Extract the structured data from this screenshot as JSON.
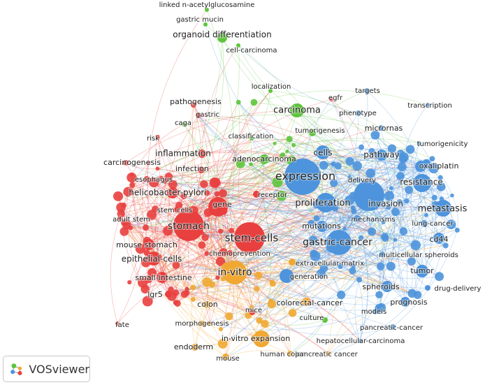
{
  "colors": {
    "red": "#e8403f",
    "green": "#5ec43c",
    "blue": "#4d94dc",
    "orange": "#f0a832"
  },
  "logo": {
    "text": "VOSviewer",
    "icon": "vosviewer-logo-icon"
  },
  "nodes": [
    {
      "label": "linked n-acetylglucosamine",
      "cluster": "green",
      "weight": 1
    },
    {
      "label": "gastric mucin",
      "cluster": "green",
      "weight": 1
    },
    {
      "label": "organoid differentiation",
      "cluster": "green",
      "weight": 3
    },
    {
      "label": "cell-carcinoma",
      "cluster": "green",
      "weight": 1
    },
    {
      "label": "localization",
      "cluster": "green",
      "weight": 1
    },
    {
      "label": "carcinoma",
      "cluster": "green",
      "weight": 4
    },
    {
      "label": "caga",
      "cluster": "green",
      "weight": 1
    },
    {
      "label": "classification",
      "cluster": "green",
      "weight": 1
    },
    {
      "label": "tumorigenesis",
      "cluster": "green",
      "weight": 1
    },
    {
      "label": "adenocarcinoma",
      "cluster": "green",
      "weight": 2
    },
    {
      "label": "culture",
      "cluster": "green",
      "weight": 1
    },
    {
      "label": "egfr",
      "cluster": "red",
      "weight": 1
    },
    {
      "label": "pathogenesis",
      "cluster": "red",
      "weight": 1
    },
    {
      "label": "gastric",
      "cluster": "red",
      "weight": 1
    },
    {
      "label": "risk",
      "cluster": "red",
      "weight": 1
    },
    {
      "label": "inflammation",
      "cluster": "red",
      "weight": 2
    },
    {
      "label": "carcinogenesis",
      "cluster": "red",
      "weight": 1
    },
    {
      "label": "infection",
      "cluster": "red",
      "weight": 1
    },
    {
      "label": "esophagus",
      "cluster": "red",
      "weight": 1
    },
    {
      "label": "helicobacter-pylori",
      "cluster": "red",
      "weight": 3
    },
    {
      "label": "receptor",
      "cluster": "red",
      "weight": 1
    },
    {
      "label": "gene",
      "cluster": "red",
      "weight": 2
    },
    {
      "label": "adult stem",
      "cluster": "red",
      "weight": 1
    },
    {
      "label": "stem cells",
      "cluster": "red",
      "weight": 1
    },
    {
      "label": "stomach",
      "cluster": "red",
      "weight": 4
    },
    {
      "label": "stem-cells",
      "cluster": "red",
      "weight": 6
    },
    {
      "label": "mouse stomach",
      "cluster": "red",
      "weight": 2
    },
    {
      "label": "epithelial-cells",
      "cluster": "red",
      "weight": 3
    },
    {
      "label": "chemoprevention",
      "cluster": "red",
      "weight": 1
    },
    {
      "label": "small-intestine",
      "cluster": "red",
      "weight": 2
    },
    {
      "label": "lgr5",
      "cluster": "red",
      "weight": 1
    },
    {
      "label": "mice",
      "cluster": "red",
      "weight": 1
    },
    {
      "label": "fate",
      "cluster": "red",
      "weight": 1
    },
    {
      "label": "in-vitro",
      "cluster": "orange",
      "weight": 5
    },
    {
      "label": "extracellular-matrix",
      "cluster": "orange",
      "weight": 1
    },
    {
      "label": "colon",
      "cluster": "orange",
      "weight": 1
    },
    {
      "label": "colorectal-cancer",
      "cluster": "orange",
      "weight": 2
    },
    {
      "label": "morphogenesis",
      "cluster": "orange",
      "weight": 1
    },
    {
      "label": "in-vitro expansion",
      "cluster": "orange",
      "weight": 3
    },
    {
      "label": "endoderm",
      "cluster": "orange",
      "weight": 1
    },
    {
      "label": "mouse",
      "cluster": "orange",
      "weight": 1
    },
    {
      "label": "human colon",
      "cluster": "orange",
      "weight": 1
    },
    {
      "label": "pancreatic cancer",
      "cluster": "orange",
      "weight": 1
    },
    {
      "label": "expression",
      "cluster": "blue",
      "weight": 6
    },
    {
      "label": "targets",
      "cluster": "blue",
      "weight": 1
    },
    {
      "label": "transcription",
      "cluster": "blue",
      "weight": 1
    },
    {
      "label": "phenotype",
      "cluster": "blue",
      "weight": 1
    },
    {
      "label": "micrornas",
      "cluster": "blue",
      "weight": 1
    },
    {
      "label": "tumorigenicity",
      "cluster": "blue",
      "weight": 1
    },
    {
      "label": "cells",
      "cluster": "blue",
      "weight": 3
    },
    {
      "label": "pathway",
      "cluster": "blue",
      "weight": 2
    },
    {
      "label": "oxaliplatin",
      "cluster": "blue",
      "weight": 2
    },
    {
      "label": "delivery",
      "cluster": "blue",
      "weight": 1
    },
    {
      "label": "resistance",
      "cluster": "blue",
      "weight": 3
    },
    {
      "label": "proliferation",
      "cluster": "blue",
      "weight": 4
    },
    {
      "label": "invasion",
      "cluster": "blue",
      "weight": 2
    },
    {
      "label": "metastasis",
      "cluster": "blue",
      "weight": 4
    },
    {
      "label": "mechanisms",
      "cluster": "blue",
      "weight": 1
    },
    {
      "label": "mutations",
      "cluster": "blue",
      "weight": 2
    },
    {
      "label": "lung-cancer",
      "cluster": "blue",
      "weight": 1
    },
    {
      "label": "cd44",
      "cluster": "blue",
      "weight": 2
    },
    {
      "label": "gastric-cancer",
      "cluster": "blue",
      "weight": 5
    },
    {
      "label": "multicellular spheroids",
      "cluster": "blue",
      "weight": 1
    },
    {
      "label": "tumor",
      "cluster": "blue",
      "weight": 2
    },
    {
      "label": "generation",
      "cluster": "blue",
      "weight": 1
    },
    {
      "label": "spheroids",
      "cluster": "blue",
      "weight": 2
    },
    {
      "label": "drug-delivery",
      "cluster": "blue",
      "weight": 1
    },
    {
      "label": "prognosis",
      "cluster": "blue",
      "weight": 2
    },
    {
      "label": "models",
      "cluster": "blue",
      "weight": 1
    },
    {
      "label": "pancreatic-cancer",
      "cluster": "blue",
      "weight": 1
    },
    {
      "label": "hepatocellular-carcinoma",
      "cluster": "blue",
      "weight": 1
    }
  ]
}
